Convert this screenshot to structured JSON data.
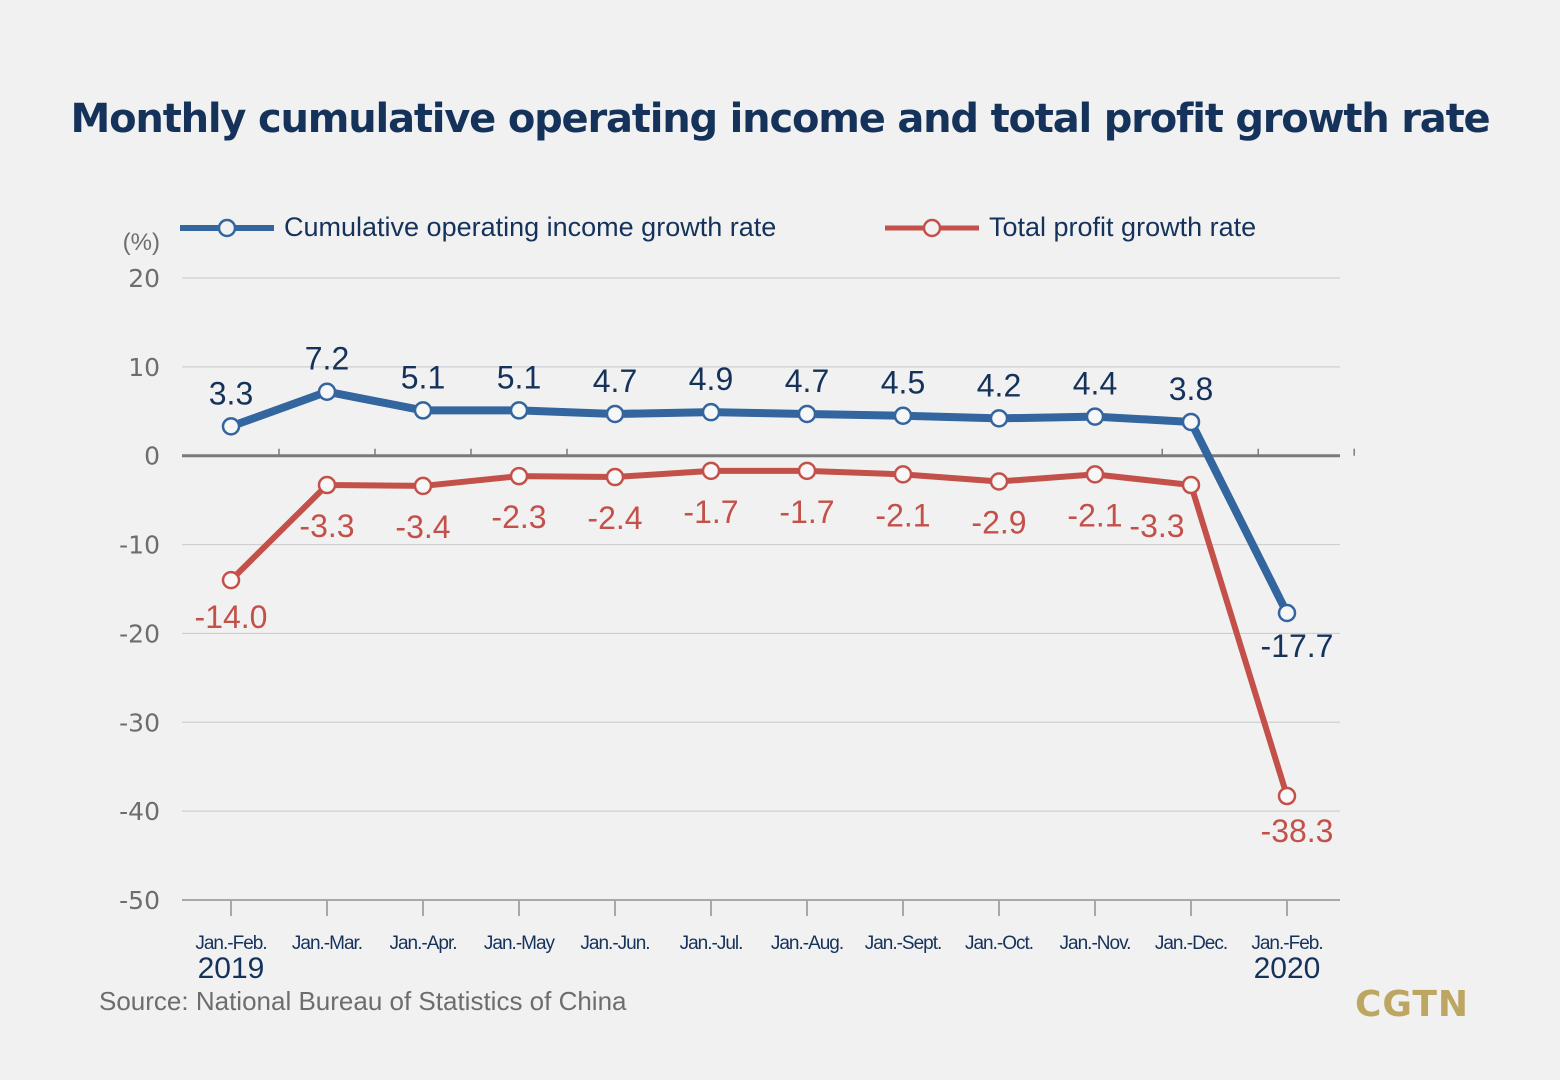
{
  "title": "Monthly cumulative operating income and total profit growth rate",
  "source": "Source: National Bureau of Statistics of China",
  "brand": "CGTN",
  "colors": {
    "income": "#33659e",
    "profit": "#c4504a",
    "title": "#15325a",
    "income_label": "#15325a",
    "profit_label": "#c4504a",
    "axis_text": "#6d6d6d",
    "brand": "#bca661"
  },
  "legend": {
    "income": "Cumulative operating income growth rate",
    "profit": "Total profit growth rate"
  },
  "chart_data": {
    "type": "line",
    "title": "Monthly cumulative operating income and total profit growth rate",
    "ylabel": "(%)",
    "xlabel": "",
    "ylim": [
      -50,
      20
    ],
    "yticks": [
      20,
      10,
      0,
      -10,
      -20,
      -30,
      -40,
      -50
    ],
    "grid": true,
    "legend_position": "top",
    "categories": [
      "Jan.-Feb.",
      "Jan.-Mar.",
      "Jan.-Apr.",
      "Jan.-May",
      "Jan.-Jun.",
      "Jan.-Jul.",
      "Jan.-Aug.",
      "Jan.-Sept.",
      "Jan.-Oct.",
      "Jan.-Nov.",
      "Jan.-Dec.",
      "Jan.-Feb."
    ],
    "year_labels": [
      {
        "index": 0,
        "label": "2019"
      },
      {
        "index": 11,
        "label": "2020"
      }
    ],
    "series": [
      {
        "name": "Cumulative operating income growth rate",
        "key": "income",
        "values": [
          3.3,
          7.2,
          5.1,
          5.1,
          4.7,
          4.9,
          4.7,
          4.5,
          4.2,
          4.4,
          3.8,
          -17.7
        ],
        "labels": [
          "3.3",
          "7.2",
          "5.1",
          "5.1",
          "4.7",
          "4.9",
          "4.7",
          "4.5",
          "4.2",
          "4.4",
          "3.8",
          "-17.7"
        ]
      },
      {
        "name": "Total profit growth rate",
        "key": "profit",
        "values": [
          -14.0,
          -3.3,
          -3.4,
          -2.3,
          -2.4,
          -1.7,
          -1.7,
          -2.1,
          -2.9,
          -2.1,
          -3.3,
          -38.3
        ],
        "labels": [
          "-14.0",
          "-3.3",
          "-3.4",
          "-2.3",
          "-2.4",
          "-1.7",
          "-1.7",
          "-2.1",
          "-2.9",
          "-2.1",
          "-3.3",
          "-38.3"
        ]
      }
    ]
  }
}
